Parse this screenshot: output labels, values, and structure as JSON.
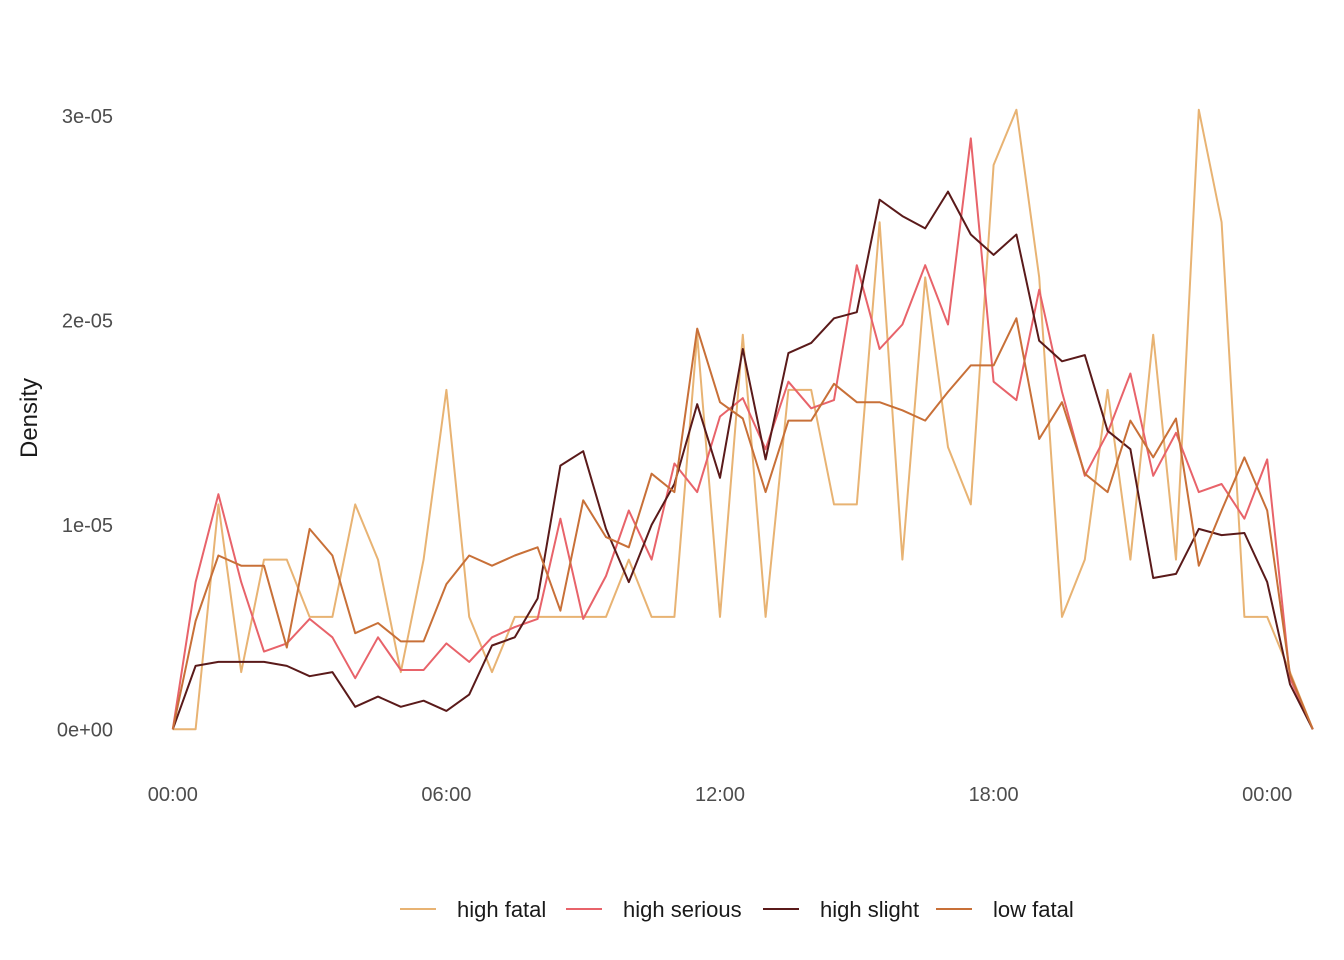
{
  "chart_data": {
    "type": "line",
    "title": "",
    "xlabel": "",
    "ylabel": "Density",
    "x_tick_labels": [
      "00:00",
      "06:00",
      "12:00",
      "18:00",
      "00:00"
    ],
    "y_tick_labels": [
      "0e+00",
      "1e-05",
      "2e-05",
      "3e-05"
    ],
    "y_ticks": [
      0,
      1e-05,
      2e-05,
      3e-05
    ],
    "xlim": [
      -1,
      49
    ],
    "ylim": [
      -1.5e-06,
      3.2e-05
    ],
    "grid": false,
    "legend_position": "bottom",
    "x": [
      0,
      1,
      2,
      3,
      4,
      5,
      6,
      7,
      8,
      9,
      10,
      11,
      12,
      13,
      14,
      15,
      16,
      17,
      18,
      19,
      20,
      21,
      22,
      23,
      24,
      25,
      26,
      27,
      28,
      29,
      30,
      31,
      32,
      33,
      34,
      35,
      36,
      37,
      38,
      39,
      40,
      41,
      42,
      43,
      44,
      45,
      46,
      47,
      48,
      49,
      50
    ],
    "x_unit": "half-hour interval of day (0 = 00:00, 12 = 06:00, 24 = 12:00, 36 = 18:00, 48 = 00:00)",
    "series": [
      {
        "name": "high fatal",
        "color": "#e8b373",
        "values": [
          0,
          0,
          1.1e-05,
          2.8e-06,
          8.3e-06,
          8.3e-06,
          5.5e-06,
          5.5e-06,
          1.1e-05,
          8.3e-06,
          2.8e-06,
          8.3e-06,
          1.66e-05,
          5.5e-06,
          2.8e-06,
          5.5e-06,
          5.5e-06,
          5.5e-06,
          5.5e-06,
          5.5e-06,
          8.3e-06,
          5.5e-06,
          5.5e-06,
          1.93e-05,
          5.5e-06,
          1.93e-05,
          5.5e-06,
          1.66e-05,
          1.66e-05,
          1.1e-05,
          1.1e-05,
          2.48e-05,
          8.3e-06,
          2.21e-05,
          1.38e-05,
          1.1e-05,
          2.76e-05,
          3.03e-05,
          2.21e-05,
          5.5e-06,
          8.3e-06,
          1.66e-05,
          8.3e-06,
          1.93e-05,
          8.3e-06,
          3.03e-05,
          2.48e-05,
          5.5e-06,
          5.5e-06,
          2.8e-06,
          0
        ]
      },
      {
        "name": "high serious",
        "color": "#e8636a",
        "values": [
          0,
          7.2e-06,
          1.15e-05,
          7.2e-06,
          3.8e-06,
          4.2e-06,
          5.4e-06,
          4.5e-06,
          2.5e-06,
          4.5e-06,
          2.9e-06,
          2.9e-06,
          4.2e-06,
          3.3e-06,
          4.5e-06,
          5e-06,
          5.4e-06,
          1.03e-05,
          5.4e-06,
          7.5e-06,
          1.07e-05,
          8.3e-06,
          1.3e-05,
          1.16e-05,
          1.53e-05,
          1.62e-05,
          1.37e-05,
          1.7e-05,
          1.57e-05,
          1.61e-05,
          2.27e-05,
          1.86e-05,
          1.98e-05,
          2.27e-05,
          1.98e-05,
          2.89e-05,
          1.7e-05,
          1.61e-05,
          2.15e-05,
          1.65e-05,
          1.24e-05,
          1.45e-05,
          1.74e-05,
          1.24e-05,
          1.45e-05,
          1.16e-05,
          1.2e-05,
          1.03e-05,
          1.32e-05,
          2.5e-06,
          0
        ]
      },
      {
        "name": "high slight",
        "color": "#5a1a1a",
        "values": [
          0,
          3.1e-06,
          3.3e-06,
          3.3e-06,
          3.3e-06,
          3.1e-06,
          2.6e-06,
          2.8e-06,
          1.1e-06,
          1.6e-06,
          1.1e-06,
          1.4e-06,
          9e-07,
          1.7e-06,
          4.1e-06,
          4.5e-06,
          6.4e-06,
          1.29e-05,
          1.36e-05,
          9.8e-06,
          7.2e-06,
          1e-05,
          1.2e-05,
          1.59e-05,
          1.23e-05,
          1.86e-05,
          1.32e-05,
          1.84e-05,
          1.89e-05,
          2.01e-05,
          2.04e-05,
          2.59e-05,
          2.51e-05,
          2.45e-05,
          2.63e-05,
          2.42e-05,
          2.32e-05,
          2.42e-05,
          1.9e-05,
          1.8e-05,
          1.83e-05,
          1.46e-05,
          1.37e-05,
          7.4e-06,
          7.6e-06,
          9.8e-06,
          9.5e-06,
          9.6e-06,
          7.2e-06,
          2.2e-06,
          0
        ]
      },
      {
        "name": "low fatal",
        "color": "#c87038",
        "values": [
          0,
          5.3e-06,
          8.5e-06,
          8e-06,
          8e-06,
          4e-06,
          9.8e-06,
          8.5e-06,
          4.7e-06,
          5.2e-06,
          4.3e-06,
          4.3e-06,
          7.1e-06,
          8.5e-06,
          8e-06,
          8.5e-06,
          8.9e-06,
          5.8e-06,
          1.12e-05,
          9.4e-06,
          8.9e-06,
          1.25e-05,
          1.16e-05,
          1.96e-05,
          1.6e-05,
          1.52e-05,
          1.16e-05,
          1.51e-05,
          1.51e-05,
          1.69e-05,
          1.6e-05,
          1.6e-05,
          1.56e-05,
          1.51e-05,
          1.65e-05,
          1.78e-05,
          1.78e-05,
          2.01e-05,
          1.42e-05,
          1.6e-05,
          1.25e-05,
          1.16e-05,
          1.51e-05,
          1.33e-05,
          1.52e-05,
          8e-06,
          1.07e-05,
          1.33e-05,
          1.07e-05,
          2.7e-06,
          0
        ]
      }
    ]
  }
}
